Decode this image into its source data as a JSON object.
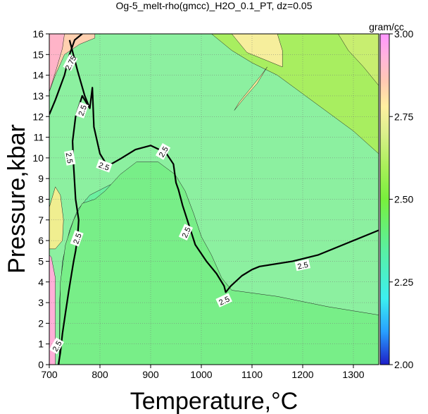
{
  "chart_data": {
    "type": "heatmap",
    "title": "Og-5_melt-rho(gmcc)_H2O_0.1_PT, dz=0.05",
    "xlabel": "Temperature,°C",
    "ylabel": "Pressure,kbar",
    "xlim": [
      700,
      1350
    ],
    "ylim": [
      0,
      16
    ],
    "x_ticks": [
      "700",
      "800",
      "900",
      "1000",
      "1100",
      "1200",
      "1300"
    ],
    "y_ticks": [
      "0",
      "1",
      "2",
      "3",
      "4",
      "5",
      "6",
      "7",
      "8",
      "9",
      "10",
      "11",
      "12",
      "13",
      "14",
      "15",
      "16"
    ],
    "grid": true,
    "colorbar": {
      "label": "gram/cc",
      "range": [
        2.0,
        3.0
      ],
      "ticks": [
        "2.00",
        "2.25",
        "2.50",
        "2.75",
        "3.00"
      ],
      "colors": [
        "#1e1ec8",
        "#28a0ff",
        "#3cf0f0",
        "#5af08c",
        "#78f03c",
        "#aaf05a",
        "#dcf08c",
        "#fff0a0",
        "#ffc8b4",
        "#ffb4dc",
        "#ff96ff"
      ]
    },
    "contour_interval": 0.05,
    "highlighted_contour": 2.5,
    "contour_labels": [
      "2.75",
      "2.5",
      "2.5",
      "2.5",
      "2.5",
      "2.5",
      "2.5",
      "2.5",
      "2.5",
      "2.5"
    ],
    "regions": [
      {
        "level": 2.25,
        "color": "#4ef8f4",
        "points": [
          [
            724,
            0
          ],
          [
            770,
            0
          ],
          [
            790,
            0.6
          ],
          [
            805,
            1.6
          ],
          [
            812,
            2.8
          ],
          [
            808,
            3.8
          ],
          [
            792,
            4.3
          ],
          [
            768,
            4.5
          ],
          [
            744,
            4.3
          ],
          [
            728,
            3.2
          ],
          [
            722,
            1.8
          ],
          [
            720,
            0.6
          ]
        ]
      },
      {
        "level": 2.3,
        "color": "#5cf2d8",
        "points": [
          [
            724,
            0
          ],
          [
            940,
            0
          ],
          [
            935,
            1.2
          ],
          [
            912,
            2.5
          ],
          [
            885,
            3.6
          ],
          [
            855,
            4.4
          ],
          [
            822,
            5.0
          ],
          [
            795,
            5.2
          ],
          [
            768,
            5.0
          ],
          [
            742,
            4.6
          ],
          [
            726,
            3.8
          ],
          [
            720,
            2.0
          ]
        ]
      },
      {
        "level": 2.35,
        "color": "#60f0bc",
        "points": [
          [
            720,
            0
          ],
          [
            1015,
            0
          ],
          [
            1008,
            1.5
          ],
          [
            990,
            2.8
          ],
          [
            972,
            4.0
          ],
          [
            958,
            5.0
          ],
          [
            946,
            5.8
          ],
          [
            920,
            6.4
          ],
          [
            880,
            6.7
          ],
          [
            840,
            6.8
          ],
          [
            800,
            6.9
          ],
          [
            770,
            6.5
          ],
          [
            748,
            5.9
          ],
          [
            730,
            5.0
          ],
          [
            720,
            3.0
          ]
        ]
      },
      {
        "level": 2.4,
        "color": "#6cf0a0",
        "points": [
          [
            720,
            0
          ],
          [
            1080,
            0
          ],
          [
            1072,
            1.5
          ],
          [
            1055,
            2.8
          ],
          [
            1030,
            3.8
          ],
          [
            1002,
            4.8
          ],
          [
            982,
            6.0
          ],
          [
            972,
            7.3
          ],
          [
            960,
            8.0
          ],
          [
            920,
            8.7
          ],
          [
            880,
            8.9
          ],
          [
            820,
            8.7
          ],
          [
            780,
            8.2
          ],
          [
            756,
            7.5
          ],
          [
            740,
            6.5
          ],
          [
            726,
            5.0
          ],
          [
            720,
            3.0
          ]
        ]
      },
      {
        "level": 2.45,
        "color": "#78ee88",
        "points": [
          [
            720,
            0
          ],
          [
            1350,
            0
          ],
          [
            1350,
            2.4
          ],
          [
            1250,
            2.8
          ],
          [
            1150,
            3.3
          ],
          [
            1060,
            3.6
          ],
          [
            1040,
            4.2
          ],
          [
            1020,
            5.3
          ],
          [
            1000,
            6.2
          ],
          [
            985,
            7.3
          ],
          [
            968,
            8.4
          ],
          [
            948,
            9.2
          ],
          [
            915,
            9.8
          ],
          [
            872,
            9.8
          ],
          [
            840,
            9.2
          ],
          [
            810,
            8.4
          ],
          [
            790,
            8.0
          ],
          [
            765,
            7.8
          ],
          [
            748,
            7.0
          ],
          [
            732,
            5.8
          ],
          [
            722,
            4.0
          ]
        ]
      },
      {
        "level": 2.55,
        "color": "#a8ee60",
        "points": [
          [
            930,
            16
          ],
          [
            1350,
            16
          ],
          [
            1350,
            10.2
          ],
          [
            1300,
            11.3
          ],
          [
            1250,
            12.2
          ],
          [
            1200,
            13.1
          ],
          [
            1150,
            14.0
          ],
          [
            1100,
            14.6
          ],
          [
            1060,
            15.2
          ],
          [
            1040,
            15.6
          ],
          [
            1020,
            16
          ]
        ]
      },
      {
        "level": 2.6,
        "color": "#c8ee70",
        "points": [
          [
            1270,
            16
          ],
          [
            1350,
            16
          ],
          [
            1350,
            13.5
          ],
          [
            1320,
            14.4
          ],
          [
            1290,
            15.2
          ]
        ]
      },
      {
        "level": 2.65,
        "color": "#f6ee9c",
        "points": [
          [
            1000,
            16
          ],
          [
            1060,
            16
          ],
          [
            1090,
            15.1
          ],
          [
            1130,
            14.7
          ],
          [
            1160,
            14.4
          ],
          [
            1160,
            15.2
          ],
          [
            1150,
            16
          ]
        ]
      },
      {
        "level": 2.65,
        "color": "#f6ee9c",
        "points": [
          [
            1065,
            12.3
          ],
          [
            1085,
            12.9
          ],
          [
            1110,
            13.6
          ],
          [
            1130,
            14.4
          ],
          [
            1118,
            14.0
          ],
          [
            1095,
            13.3
          ],
          [
            1075,
            12.7
          ]
        ]
      },
      {
        "level": 2.6,
        "color": "#f0ee90",
        "points": [
          [
            700,
            5.6
          ],
          [
            700,
            7.6
          ],
          [
            712,
            8.6
          ],
          [
            722,
            8.2
          ],
          [
            728,
            7.0
          ],
          [
            726,
            6.0
          ],
          [
            712,
            5.6
          ]
        ]
      },
      {
        "level": 2.7,
        "color": "#ffd0b0",
        "points": [
          [
            700,
            15.7
          ],
          [
            700,
            13.2
          ],
          [
            712,
            14.0
          ],
          [
            730,
            15.0
          ],
          [
            760,
            15.5
          ],
          [
            790,
            15.8
          ],
          [
            790,
            16
          ],
          [
            720,
            16
          ]
        ]
      },
      {
        "level": 2.75,
        "color": "#ffb4c8",
        "points": [
          [
            700,
            13.2
          ],
          [
            700,
            16
          ],
          [
            730,
            16
          ],
          [
            726,
            15.3
          ],
          [
            714,
            14.3
          ]
        ]
      },
      {
        "level": 2.8,
        "color": "#ffb0d8",
        "points": [
          [
            700,
            0
          ],
          [
            712,
            0
          ],
          [
            712,
            4.2
          ],
          [
            704,
            5.2
          ],
          [
            700,
            5.3
          ]
        ]
      }
    ],
    "isopleth_2_5": [
      [
        740,
        15.7
      ],
      [
        756,
        14.2
      ],
      [
        770,
        13.0
      ],
      [
        780,
        12.4
      ],
      [
        785,
        13.4
      ],
      [
        788,
        11.5
      ],
      [
        800,
        10.2
      ],
      [
        815,
        9.6
      ],
      [
        840,
        9.95
      ],
      [
        870,
        10.4
      ],
      [
        900,
        10.6
      ],
      [
        930,
        10.25
      ],
      [
        945,
        9.7
      ],
      [
        950,
        8.8
      ],
      [
        955,
        8.45
      ],
      [
        963,
        7.7
      ],
      [
        988,
        5.8
      ],
      [
        1010,
        5.0
      ],
      [
        1030,
        4.4
      ],
      [
        1045,
        3.8
      ],
      [
        1048,
        3.5
      ],
      [
        1058,
        3.8
      ],
      [
        1080,
        4.3
      ],
      [
        1100,
        4.6
      ],
      [
        1115,
        4.75
      ],
      [
        1180,
        5.0
      ],
      [
        1230,
        5.3
      ],
      [
        1300,
        6.0
      ],
      [
        1350,
        6.5
      ]
    ],
    "isopleth_2_5_left": [
      [
        780,
        12.4
      ],
      [
        765,
        13.0
      ],
      [
        752,
        12.0
      ],
      [
        746,
        10.8
      ],
      [
        748,
        9.6
      ],
      [
        752,
        8.0
      ],
      [
        758,
        7.0
      ],
      [
        756,
        6.2
      ],
      [
        752,
        5.5
      ],
      [
        748,
        5.0
      ],
      [
        744,
        4.4
      ],
      [
        738,
        3.5
      ],
      [
        732,
        2.5
      ],
      [
        726,
        1.5
      ],
      [
        722,
        0.6
      ],
      [
        718,
        0
      ]
    ],
    "isopleth_2_75": [
      [
        700,
        12.1
      ],
      [
        712,
        12.8
      ],
      [
        730,
        14.0
      ],
      [
        740,
        15.0
      ],
      [
        750,
        15.7
      ],
      [
        765,
        16
      ]
    ]
  }
}
